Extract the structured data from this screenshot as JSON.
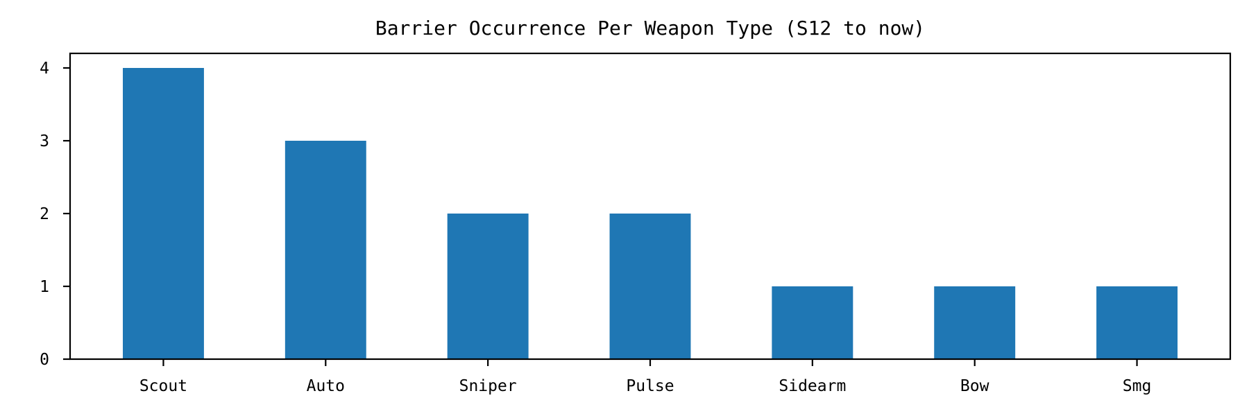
{
  "chart_data": {
    "type": "bar",
    "title": "Barrier Occurrence Per Weapon Type (S12 to now)",
    "xlabel": "",
    "ylabel": "",
    "categories": [
      "Scout",
      "Auto",
      "Sniper",
      "Pulse",
      "Sidearm",
      "Bow",
      "Smg"
    ],
    "values": [
      4,
      3,
      2,
      2,
      1,
      1,
      1
    ],
    "ylim": [
      0,
      4.2
    ],
    "yticks": [
      0,
      1,
      2,
      3,
      4
    ],
    "bar_color": "#1f77b4",
    "grid": false,
    "legend": "none"
  }
}
